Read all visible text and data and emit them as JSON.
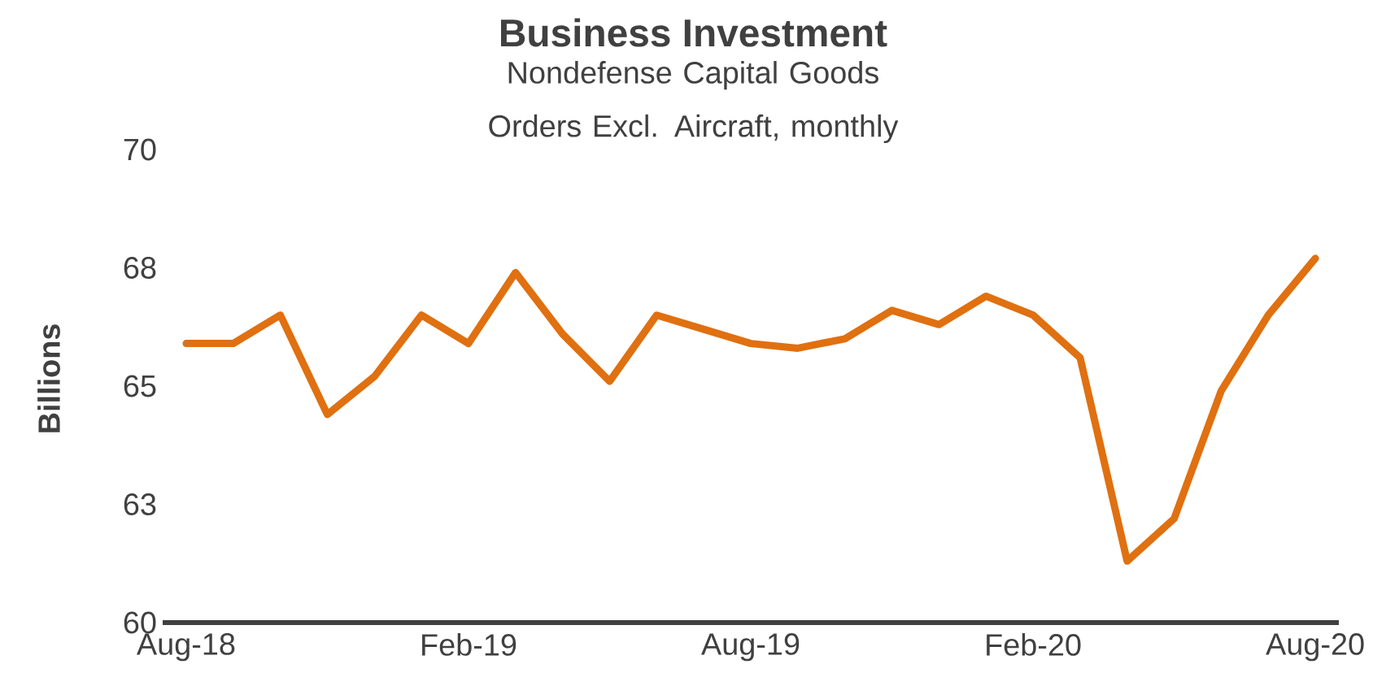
{
  "chart_data": {
    "type": "line",
    "title": "Business Investment",
    "subtitle": "Nondefense Capital Goods Orders Excl. Aircraft, monthly",
    "ylabel": "Billions",
    "categories": [
      "Aug-18",
      null,
      null,
      null,
      null,
      null,
      "Feb-19",
      null,
      null,
      null,
      null,
      null,
      "Aug-19",
      null,
      null,
      null,
      null,
      null,
      "Feb-20",
      null,
      null,
      null,
      null,
      null,
      "Aug-20"
    ],
    "series": [
      {
        "color": "#e07010",
        "values": [
          65.9,
          65.9,
          66.5,
          64.4,
          65.2,
          66.5,
          65.9,
          67.4,
          66.1,
          65.1,
          66.5,
          66.2,
          65.9,
          65.8,
          66.0,
          66.6,
          66.3,
          66.9,
          66.5,
          65.6,
          61.3,
          62.2,
          64.9,
          66.5,
          67.7
        ]
      }
    ],
    "ylim": [
      60,
      70
    ],
    "yticks": [
      60,
      {
        "value": 62.5,
        "label": "63"
      },
      65,
      {
        "value": 67.5,
        "label": "68"
      },
      70
    ]
  }
}
